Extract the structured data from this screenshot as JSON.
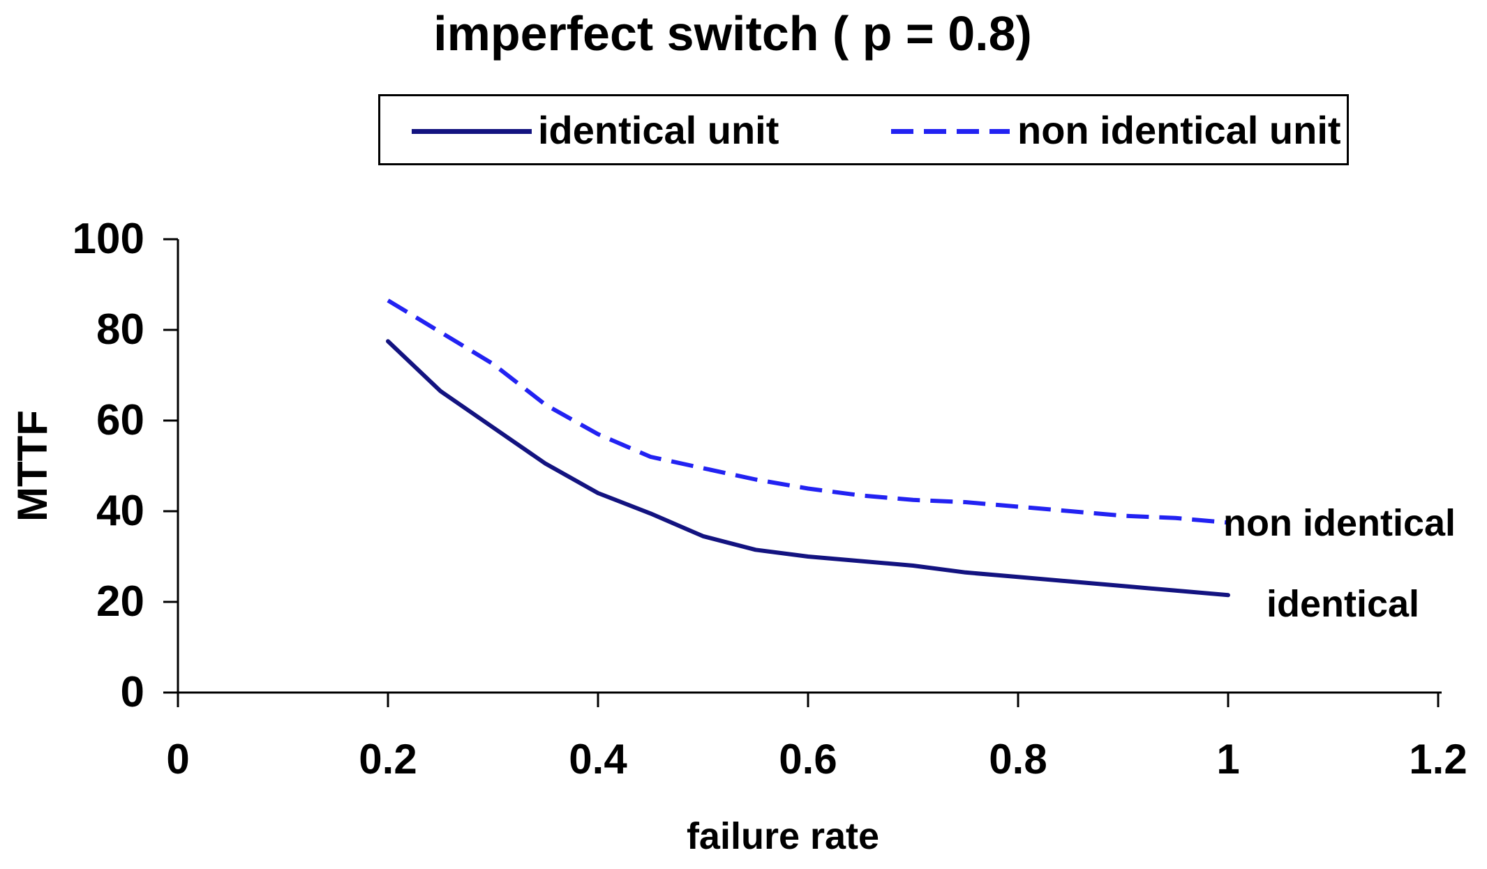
{
  "title": "imperfect switch ( p = 0.8)",
  "axes": {
    "y_title": "MTTF",
    "x_title": "failure rate",
    "y_ticks": [
      "100",
      "80",
      "60",
      "40",
      "20",
      "0"
    ],
    "x_ticks": [
      "0",
      "0.2",
      "0.4",
      "0.6",
      "0.8",
      "1",
      "1.2"
    ]
  },
  "annotations": [
    {
      "text": "non identical"
    },
    {
      "text": "identical"
    }
  ],
  "colors": {
    "identical_line": "#131380",
    "non_identical_line": "#2222F2",
    "axis": "#000000",
    "text": "#000000",
    "background": "#FFFFFF"
  },
  "chart_data": {
    "type": "line",
    "title": "imperfect switch ( p = 0.8)",
    "xlabel": "failure rate",
    "ylabel": "MTTF",
    "xlim": [
      0,
      1.2
    ],
    "ylim": [
      0,
      100
    ],
    "x_tick_values": [
      0,
      0.2,
      0.4,
      0.6,
      0.8,
      1,
      1.2
    ],
    "y_tick_values": [
      0,
      20,
      40,
      60,
      80,
      100
    ],
    "grid": false,
    "legend_position": "top",
    "x": [
      0.2,
      0.25,
      0.3,
      0.35,
      0.4,
      0.45,
      0.5,
      0.55,
      0.6,
      0.65,
      0.7,
      0.75,
      0.8,
      0.85,
      0.9,
      0.95,
      1.0
    ],
    "series": [
      {
        "name": "identical unit",
        "line_style": "solid",
        "color": "#131380",
        "values": [
          77.5,
          66.5,
          58.5,
          50.5,
          44,
          39.5,
          34.5,
          31.5,
          30,
          29,
          28,
          26.5,
          25.5,
          24.5,
          23.5,
          22.5,
          21.5
        ]
      },
      {
        "name": "non identical unit",
        "line_style": "dashed",
        "color": "#2222F2",
        "values": [
          86.5,
          79.5,
          72.5,
          63.5,
          57,
          52,
          49.5,
          47,
          45,
          43.5,
          42.5,
          42,
          41,
          40,
          39,
          38.5,
          37.5
        ]
      }
    ]
  }
}
